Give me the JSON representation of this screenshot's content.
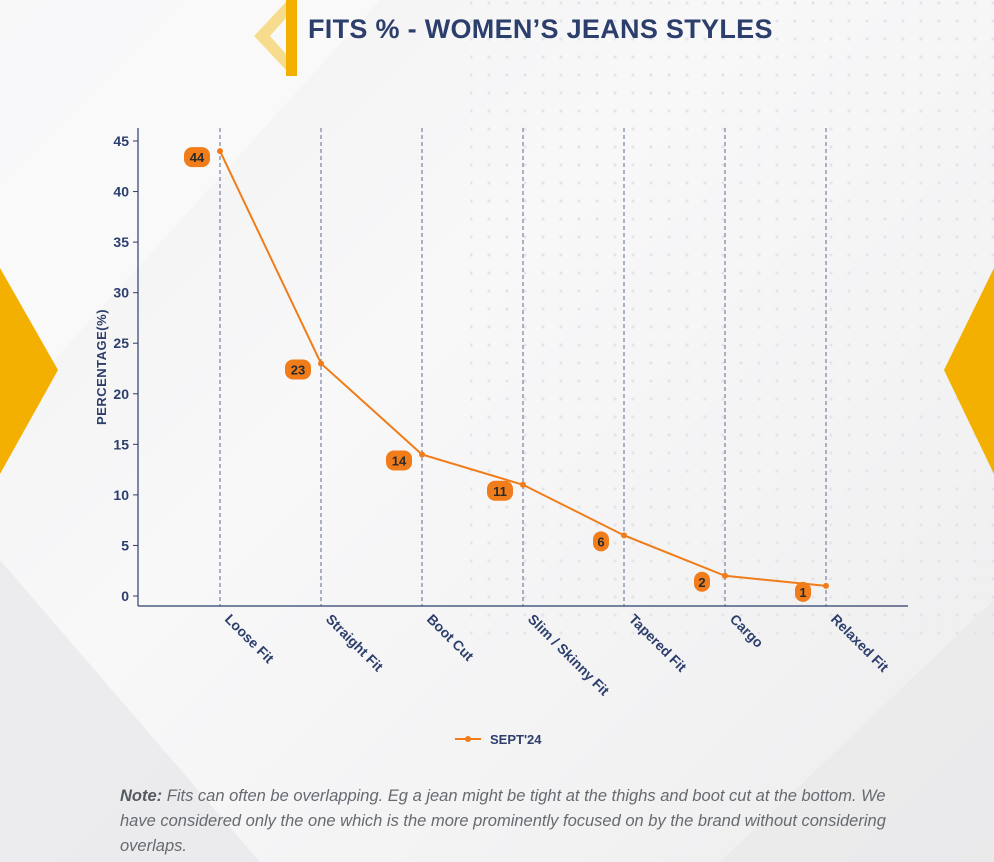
{
  "title": "FITS % - WOMEN’S JEANS STYLES",
  "colors": {
    "accent": "#f4b000",
    "title": "#2c3e6b",
    "line": "#f07c1a",
    "label_bg": "#f07c1a",
    "axis": "#2c3e6b"
  },
  "chart_data": {
    "type": "line",
    "title": "",
    "xlabel": "",
    "ylabel": "PERCENTAGE(%)",
    "categories": [
      "Loose Fit",
      "Straight Fit",
      "Boot Cut",
      "Slim / Skinny Fit",
      "Tapered Fit",
      "Cargo",
      "Relaxed Fit"
    ],
    "series": [
      {
        "name": "SEPT'24",
        "values": [
          44,
          23,
          14,
          11,
          6,
          2,
          1
        ]
      }
    ],
    "ylim": [
      0,
      45
    ],
    "yticks": [
      0,
      5,
      10,
      15,
      20,
      25,
      30,
      35,
      40,
      45
    ],
    "grid": "vertical dashed",
    "legend_position": "bottom-center",
    "data_labels": true
  },
  "note": {
    "label": "Note:",
    "text": " Fits can often be overlapping. Eg a jean might be tight at the thighs and boot cut at the bottom. We have considered only the one which is the more prominently focused on by the brand without considering overlaps."
  }
}
